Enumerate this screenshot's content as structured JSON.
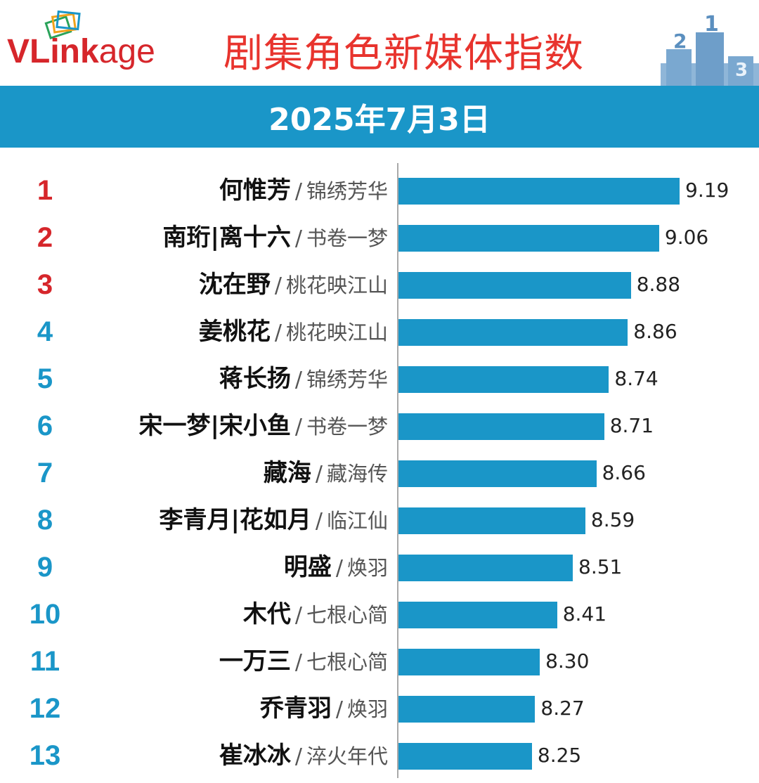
{
  "header": {
    "logo_bold": "VLink",
    "logo_rest": "age",
    "title": "剧集角色新媒体指数",
    "date": "2025年7月3日"
  },
  "colors": {
    "bar": "#1a96c8",
    "top_rank": "#d6262b",
    "rank": "#1a96c8",
    "title": "#e8342e"
  },
  "chart_data": {
    "type": "bar",
    "orientation": "horizontal",
    "title": "剧集角色新媒体指数",
    "subtitle": "2025年7月3日",
    "xlabel": "",
    "ylabel": "",
    "xlim": [
      0,
      9.19
    ],
    "grid": false,
    "legend": "none",
    "rows": [
      {
        "rank": "1",
        "name": "何惟芳",
        "drama": "锦绣芳华",
        "value": 9.19,
        "label": "9.19"
      },
      {
        "rank": "2",
        "name": "南珩|离十六",
        "drama": "书卷一梦",
        "value": 9.06,
        "label": "9.06"
      },
      {
        "rank": "3",
        "name": "沈在野",
        "drama": "桃花映江山",
        "value": 8.88,
        "label": "8.88"
      },
      {
        "rank": "4",
        "name": "姜桃花",
        "drama": "桃花映江山",
        "value": 8.86,
        "label": "8.86"
      },
      {
        "rank": "5",
        "name": "蒋长扬",
        "drama": "锦绣芳华",
        "value": 8.74,
        "label": "8.74"
      },
      {
        "rank": "6",
        "name": "宋一梦|宋小鱼",
        "drama": "书卷一梦",
        "value": 8.71,
        "label": "8.71"
      },
      {
        "rank": "7",
        "name": "藏海",
        "drama": "藏海传",
        "value": 8.66,
        "label": "8.66"
      },
      {
        "rank": "8",
        "name": "李青月|花如月",
        "drama": "临江仙",
        "value": 8.59,
        "label": "8.59"
      },
      {
        "rank": "9",
        "name": "明盛",
        "drama": "焕羽",
        "value": 8.51,
        "label": "8.51"
      },
      {
        "rank": "10",
        "name": "木代",
        "drama": "七根心简",
        "value": 8.41,
        "label": "8.41"
      },
      {
        "rank": "11",
        "name": "一万三",
        "drama": "七根心简",
        "value": 8.3,
        "label": "8.30"
      },
      {
        "rank": "12",
        "name": "乔青羽",
        "drama": "焕羽",
        "value": 8.27,
        "label": "8.27"
      },
      {
        "rank": "13",
        "name": "崔冰冰",
        "drama": "淬火年代",
        "value": 8.25,
        "label": "8.25"
      }
    ]
  }
}
